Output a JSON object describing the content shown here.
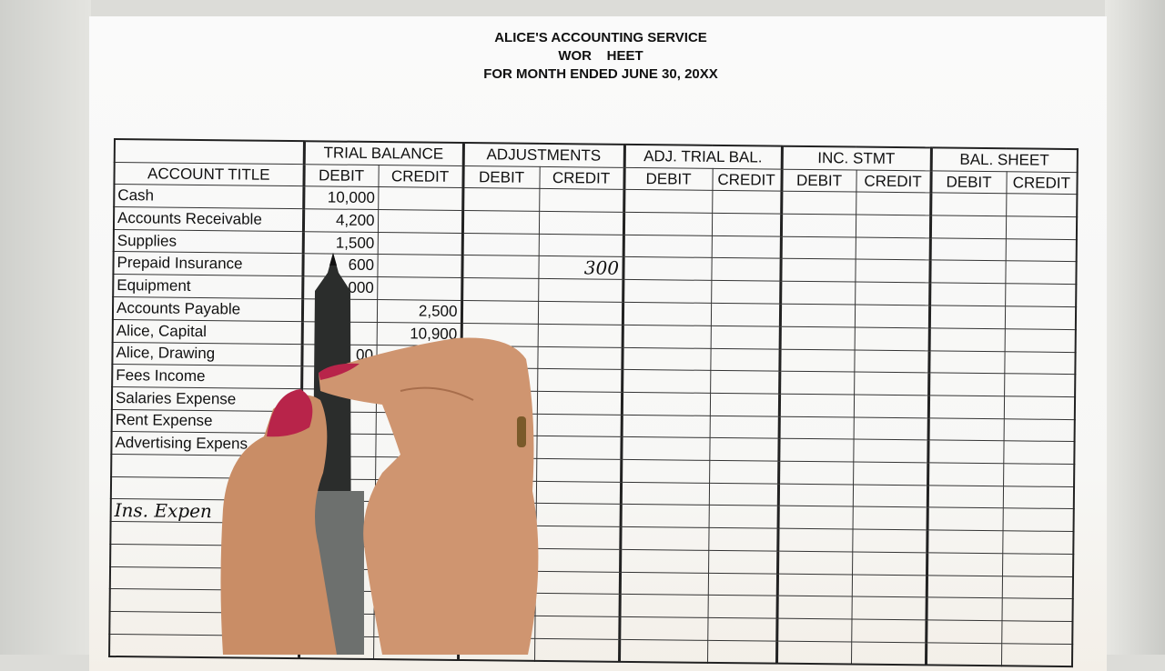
{
  "header": {
    "company": "ALICE'S ACCOUNTING SERVICE",
    "title": "WOR    HEET",
    "period": "FOR MONTH ENDED JUNE 30, 20XX"
  },
  "columns": {
    "account_title": "ACCOUNT TITLE",
    "groups": [
      "TRIAL BALANCE",
      "ADJUSTMENTS",
      "ADJ. TRIAL BAL.",
      "INC. STMT",
      "BAL. SHEET"
    ],
    "debit": "DEBIT",
    "credit": "CREDIT"
  },
  "rows": [
    {
      "account": "Cash",
      "tb_debit": "10,000",
      "tb_credit": "",
      "adj_credit": ""
    },
    {
      "account": "Accounts Receivable",
      "tb_debit": "4,200",
      "tb_credit": "",
      "adj_credit": ""
    },
    {
      "account": "Supplies",
      "tb_debit": "1,500",
      "tb_credit": "",
      "adj_credit": ""
    },
    {
      "account": "Prepaid Insurance",
      "tb_debit": "600",
      "tb_credit": "",
      "adj_credit": "300"
    },
    {
      "account": "Equipment",
      "tb_debit": "000",
      "tb_credit": "",
      "adj_credit": ""
    },
    {
      "account": "Accounts Payable",
      "tb_debit": "",
      "tb_credit": "2,500",
      "adj_credit": ""
    },
    {
      "account": "Alice, Capital",
      "tb_debit": "",
      "tb_credit": "10,900",
      "adj_credit": ""
    },
    {
      "account": "Alice, Drawing",
      "tb_debit": "00",
      "tb_credit": "",
      "adj_credit": ""
    },
    {
      "account": "Fees Income",
      "tb_debit": "",
      "tb_credit": "",
      "adj_credit": ""
    },
    {
      "account": "Salaries Expense",
      "tb_debit": "",
      "tb_credit": "",
      "adj_credit": ""
    },
    {
      "account": "Rent Expense",
      "tb_debit": "",
      "tb_credit": "",
      "adj_credit": ""
    },
    {
      "account": "Advertising Expens",
      "tb_debit": "",
      "tb_credit": "",
      "adj_credit": ""
    },
    {
      "account": "",
      "tb_debit": "",
      "tb_credit": "",
      "adj_credit": ""
    },
    {
      "account": "",
      "tb_debit": "",
      "tb_credit": "",
      "adj_credit": ""
    },
    {
      "account": "Ins. Expen",
      "handwritten": true,
      "tb_debit": "",
      "tb_credit": "",
      "adj_credit": ""
    },
    {
      "account": "",
      "tb_debit": "",
      "tb_credit": "",
      "adj_credit": ""
    },
    {
      "account": "",
      "tb_debit": "",
      "tb_credit": "",
      "adj_credit": ""
    },
    {
      "account": "",
      "tb_debit": "",
      "tb_credit": "",
      "adj_credit": ""
    },
    {
      "account": "",
      "tb_debit": "",
      "tb_credit": "",
      "adj_credit": ""
    },
    {
      "account": "",
      "tb_debit": "",
      "tb_credit": "",
      "adj_credit": ""
    },
    {
      "account": "",
      "tb_debit": "",
      "tb_credit": "",
      "adj_credit": ""
    }
  ],
  "colors": {
    "skin": "#d9a27a",
    "nail": "#b8244a",
    "pen": "#3a3d3c"
  }
}
